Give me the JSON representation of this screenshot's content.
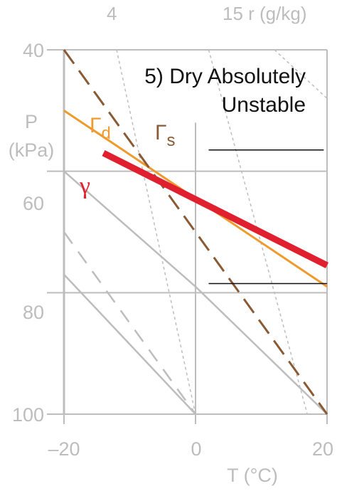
{
  "title_lines": [
    "5) Dry Absolutely",
    "Unstable"
  ],
  "axis": {
    "x_label": "T (°C)",
    "x_ticks": [
      "–20",
      "0",
      "20"
    ],
    "y_label_lines": [
      "P",
      "(kPa)"
    ],
    "y_ticks": [
      "40",
      "60",
      "80",
      "100"
    ]
  },
  "mixing_ratio_labels": {
    "low": "4",
    "high": "15 r (g/kg)"
  },
  "curve_labels": {
    "dry_main": "Γ",
    "dry_sub": "d",
    "sat_main": "Γ",
    "sat_sub": "s",
    "env": "γ"
  },
  "colors": {
    "grid": "#bdbdbd",
    "dry_adiabat": "#ee9a2e",
    "saturated_adiabat": "#8a5a35",
    "environment": "#e0202e",
    "layer_lines": "#111111"
  },
  "lines": {
    "background_dry_adiabats": [
      {
        "from": {
          "T": -20,
          "P": 60
        },
        "to": {
          "T": 0,
          "P": 79
        }
      },
      {
        "from": {
          "T": 0,
          "P": 79
        },
        "to": {
          "T": 20,
          "P": 100
        }
      },
      {
        "from": {
          "T": -20,
          "P": 77
        },
        "to": {
          "T": 0,
          "P": 100
        }
      }
    ],
    "background_saturated_adiabat": {
      "from": {
        "T": -20,
        "P": 70
      },
      "to": {
        "T": 0,
        "P": 100
      }
    },
    "mixing_ratio_lines": [
      {
        "from": {
          "T": -12,
          "P": 40
        },
        "to": {
          "T": 0,
          "P": 100
        }
      },
      {
        "from": {
          "T": 2,
          "P": 40
        },
        "to": {
          "T": 17,
          "P": 100
        }
      },
      {
        "from": {
          "T": 12,
          "P": 40
        },
        "to": {
          "T": 20,
          "P": 48
        }
      }
    ],
    "dry_adiabat": {
      "from": {
        "T": -20,
        "P": 50
      },
      "to": {
        "T": 20,
        "P": 79
      }
    },
    "saturated_adiabat": {
      "from": {
        "T": -20,
        "P": 40
      },
      "to": {
        "T": 20,
        "P": 100
      }
    },
    "environment": {
      "from": {
        "T": -14,
        "P": 57
      },
      "to": {
        "T": 20,
        "P": 75.5
      }
    },
    "layer_top": {
      "T1": 2,
      "T2": 19.5,
      "P": 56.5
    },
    "layer_bottom": {
      "T1": 2,
      "T2": 20,
      "P": 78.5
    }
  }
}
